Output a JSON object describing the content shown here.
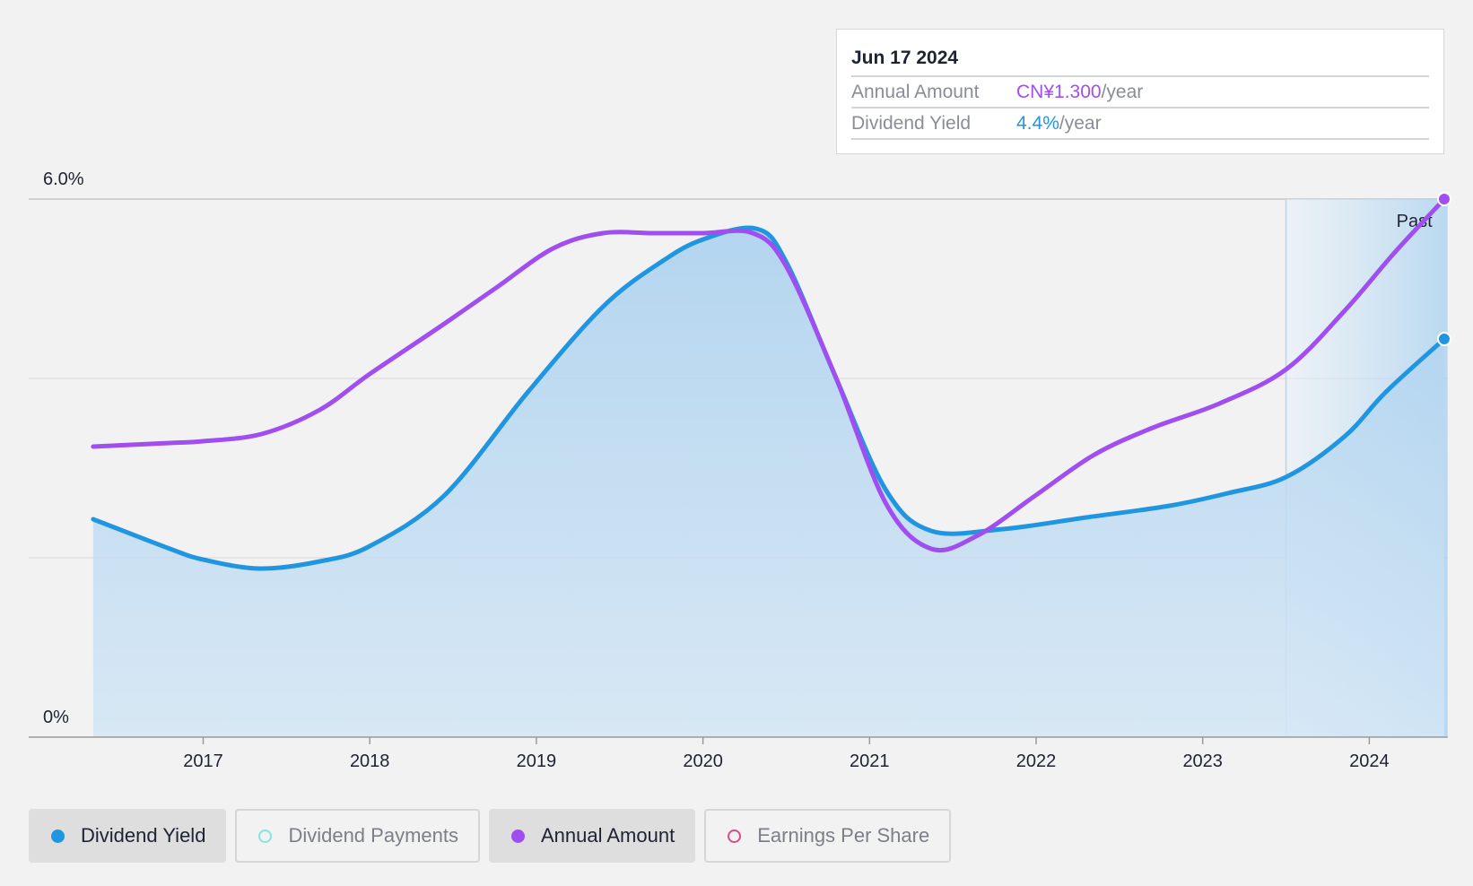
{
  "tooltip": {
    "date": "Jun 17 2024",
    "rows": [
      {
        "label": "Annual Amount",
        "value": "CN¥1.300",
        "unit": "/year"
      },
      {
        "label": "Dividend Yield",
        "value": "4.4%",
        "unit": "/year"
      }
    ]
  },
  "legend": [
    {
      "label": "Dividend Yield",
      "active": true,
      "color": "#2196e0"
    },
    {
      "label": "Dividend Payments",
      "active": false,
      "color": "#7de8de"
    },
    {
      "label": "Annual Amount",
      "active": true,
      "color": "#a14ef0"
    },
    {
      "label": "Earnings Per Share",
      "active": false,
      "color": "#d0508a"
    }
  ],
  "chart_data": {
    "type": "line",
    "y_axis": {
      "top_label": "6.0%",
      "bottom_label": "0%",
      "ylim": [
        0,
        6.0
      ],
      "gridlines": [
        0,
        2.0,
        4.0,
        6.0
      ]
    },
    "x_axis": {
      "ticks": [
        "2017",
        "2018",
        "2019",
        "2020",
        "2021",
        "2022",
        "2023",
        "2024"
      ],
      "xlim": [
        2016.3,
        2024.47
      ]
    },
    "past_region": {
      "label": "Past",
      "start": 2023.5
    },
    "series": [
      {
        "name": "Dividend Yield",
        "color": "#2196e0",
        "fill": true,
        "points": [
          [
            2016.34,
            2.43
          ],
          [
            2016.8,
            2.1
          ],
          [
            2017.0,
            1.98
          ],
          [
            2017.34,
            1.88
          ],
          [
            2017.7,
            1.96
          ],
          [
            2018.0,
            2.13
          ],
          [
            2018.45,
            2.7
          ],
          [
            2018.95,
            3.85
          ],
          [
            2019.4,
            4.8
          ],
          [
            2019.75,
            5.3
          ],
          [
            2020.0,
            5.55
          ],
          [
            2020.32,
            5.67
          ],
          [
            2020.5,
            5.3
          ],
          [
            2020.8,
            4.0
          ],
          [
            2021.1,
            2.75
          ],
          [
            2021.37,
            2.3
          ],
          [
            2021.8,
            2.32
          ],
          [
            2022.3,
            2.45
          ],
          [
            2022.8,
            2.58
          ],
          [
            2023.15,
            2.72
          ],
          [
            2023.5,
            2.9
          ],
          [
            2023.85,
            3.35
          ],
          [
            2024.1,
            3.85
          ],
          [
            2024.45,
            4.44
          ]
        ]
      },
      {
        "name": "Annual Amount",
        "color": "#a14ef0",
        "fill": false,
        "points": [
          [
            2016.34,
            3.24
          ],
          [
            2016.8,
            3.28
          ],
          [
            2017.0,
            3.3
          ],
          [
            2017.35,
            3.38
          ],
          [
            2017.7,
            3.65
          ],
          [
            2018.0,
            4.05
          ],
          [
            2018.4,
            4.55
          ],
          [
            2018.75,
            5.0
          ],
          [
            2019.1,
            5.45
          ],
          [
            2019.4,
            5.62
          ],
          [
            2019.7,
            5.62
          ],
          [
            2020.0,
            5.62
          ],
          [
            2020.3,
            5.62
          ],
          [
            2020.5,
            5.25
          ],
          [
            2020.8,
            4.0
          ],
          [
            2021.1,
            2.6
          ],
          [
            2021.37,
            2.1
          ],
          [
            2021.65,
            2.25
          ],
          [
            2022.0,
            2.7
          ],
          [
            2022.35,
            3.15
          ],
          [
            2022.7,
            3.45
          ],
          [
            2023.1,
            3.72
          ],
          [
            2023.5,
            4.1
          ],
          [
            2023.85,
            4.75
          ],
          [
            2024.15,
            5.4
          ],
          [
            2024.45,
            6.0
          ]
        ]
      }
    ]
  }
}
